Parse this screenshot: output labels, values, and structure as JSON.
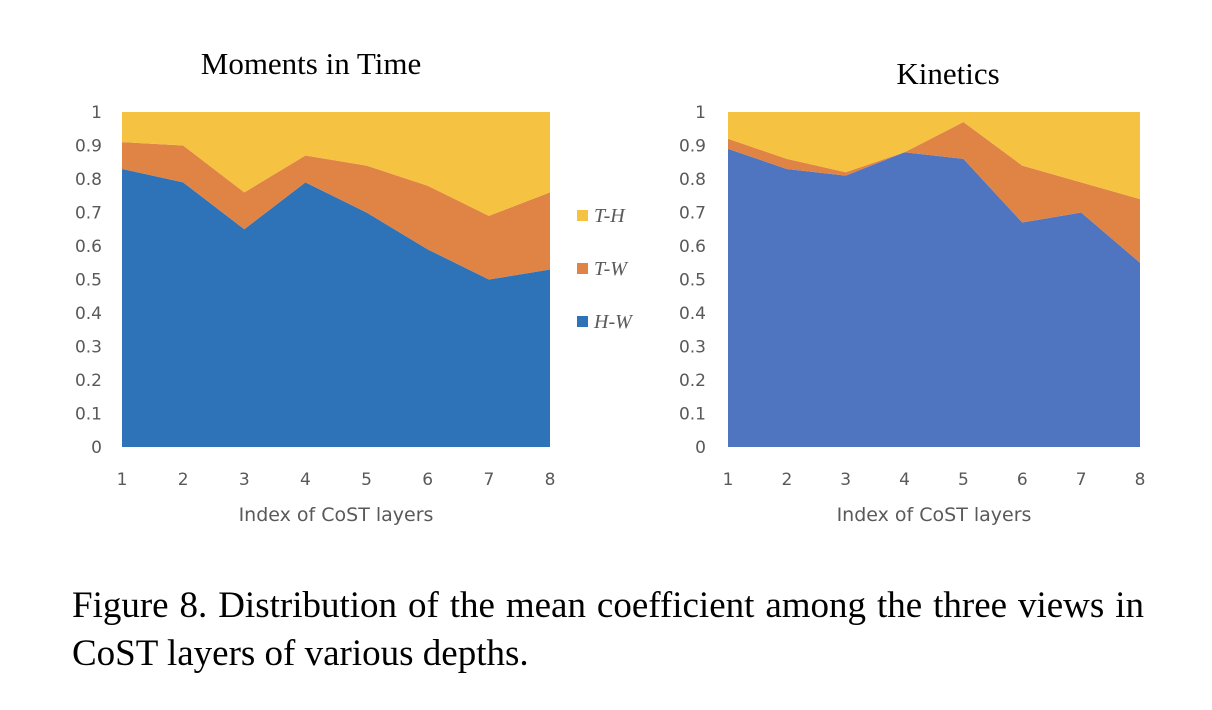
{
  "chart_data": [
    {
      "type": "area",
      "stacked": true,
      "title": "Moments in Time",
      "xlabel": "Index of CoST layers",
      "ylabel": "",
      "x": [
        1,
        2,
        3,
        4,
        5,
        6,
        7,
        8
      ],
      "ylim": [
        0,
        1
      ],
      "yticks": [
        "0",
        "0.1",
        "0.2",
        "0.3",
        "0.4",
        "0.5",
        "0.6",
        "0.7",
        "0.8",
        "0.9",
        "1"
      ],
      "series": [
        {
          "name": "H-W",
          "color": "#2e72b8",
          "values": [
            0.83,
            0.79,
            0.65,
            0.79,
            0.7,
            0.59,
            0.5,
            0.53
          ]
        },
        {
          "name": "T-W",
          "color": "#e08445",
          "values": [
            0.08,
            0.11,
            0.11,
            0.08,
            0.14,
            0.19,
            0.19,
            0.23
          ]
        },
        {
          "name": "T-H",
          "color": "#f5c242",
          "values": [
            0.09,
            0.1,
            0.24,
            0.13,
            0.16,
            0.22,
            0.31,
            0.24
          ]
        }
      ],
      "legend": {
        "position": "right",
        "items": [
          "T-H",
          "T-W",
          "H-W"
        ]
      },
      "grid": false
    },
    {
      "type": "area",
      "stacked": true,
      "title": "Kinetics",
      "xlabel": "Index of CoST layers",
      "ylabel": "",
      "x": [
        1,
        2,
        3,
        4,
        5,
        6,
        7,
        8
      ],
      "ylim": [
        0,
        1
      ],
      "yticks": [
        "0",
        "0.1",
        "0.2",
        "0.3",
        "0.4",
        "0.5",
        "0.6",
        "0.7",
        "0.8",
        "0.9",
        "1"
      ],
      "series": [
        {
          "name": "H-W",
          "color": "#4f74c0",
          "values": [
            0.89,
            0.83,
            0.81,
            0.88,
            0.86,
            0.67,
            0.7,
            0.55
          ]
        },
        {
          "name": "T-W",
          "color": "#e08445",
          "values": [
            0.03,
            0.03,
            0.01,
            0.0,
            0.11,
            0.17,
            0.09,
            0.19
          ]
        },
        {
          "name": "T-H",
          "color": "#f5c242",
          "values": [
            0.08,
            0.14,
            0.18,
            0.12,
            0.03,
            0.16,
            0.21,
            0.26
          ]
        }
      ],
      "grid": false
    }
  ],
  "caption": "Figure 8. Distribution of the mean coefficient among the three views in CoST layers of various depths."
}
